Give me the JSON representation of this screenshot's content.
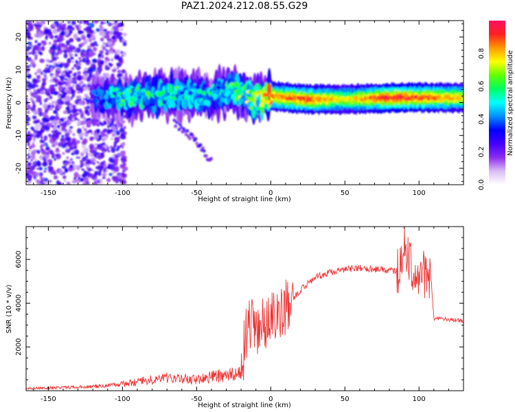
{
  "title": "PAZ1.2024.212.08.55.G29",
  "chart_data": [
    {
      "type": "heatmap",
      "xlabel": "Height of straight line (km)",
      "ylabel": "Frequency (Hz)",
      "xlim": [
        -165,
        130
      ],
      "ylim": [
        -25,
        25
      ],
      "x_ticks": [
        -150,
        -100,
        -50,
        0,
        50,
        100
      ],
      "y_ticks": [
        -20,
        -10,
        0,
        10,
        20
      ],
      "colorbar": {
        "label": "Normalized spectral amplitude",
        "range": [
          0,
          1
        ],
        "ticks": [
          0.0,
          0.2,
          0.4,
          0.6,
          0.8
        ],
        "colors": [
          "#ffffff",
          "#d9bdf5",
          "#8b2cf0",
          "#4400ff",
          "#0000ff",
          "#0090ff",
          "#00ffff",
          "#00ff60",
          "#60ff00",
          "#ffff00",
          "#ff9900",
          "#ff2020",
          "#ff1060"
        ]
      },
      "ridge": [
        {
          "x": -120,
          "f": 2.0,
          "amp": 0.35
        },
        {
          "x": -100,
          "f": 1.5,
          "amp": 0.55
        },
        {
          "x": -80,
          "f": 2.0,
          "amp": 0.55
        },
        {
          "x": -60,
          "f": 2.5,
          "amp": 0.55
        },
        {
          "x": -40,
          "f": 2.0,
          "amp": 0.5
        },
        {
          "x": -25,
          "f": 4.0,
          "amp": 0.6
        },
        {
          "x": -10,
          "f": 0.5,
          "amp": 0.7
        },
        {
          "x": 0,
          "f": 2.0,
          "amp": 0.85
        },
        {
          "x": 25,
          "f": 1.0,
          "amp": 0.9
        },
        {
          "x": 50,
          "f": 1.0,
          "amp": 0.75
        },
        {
          "x": 80,
          "f": 1.5,
          "amp": 0.95
        },
        {
          "x": 100,
          "f": 1.5,
          "amp": 0.9
        },
        {
          "x": 130,
          "f": 1.5,
          "amp": 0.8
        }
      ],
      "branch": [
        {
          "x": -65,
          "f": -6.0,
          "amp": 0.3
        },
        {
          "x": -50,
          "f": -12.0,
          "amp": 0.3
        },
        {
          "x": -40,
          "f": -18.0,
          "amp": 0.3
        }
      ]
    },
    {
      "type": "line",
      "xlabel": "Height of straight line (km)",
      "ylabel": "SNR (10 * v/v)",
      "xlim": [
        -165,
        130
      ],
      "ylim": [
        0,
        7500
      ],
      "x_ticks": [
        -150,
        -100,
        -50,
        0,
        50,
        100
      ],
      "y_ticks": [
        2000,
        4000,
        6000
      ],
      "line_color": "#ee3333",
      "series": [
        {
          "x": [
            -165,
            -150,
            -130,
            -110,
            -100,
            -90,
            -80,
            -70,
            -60,
            -50,
            -40,
            -30,
            -20,
            -17,
            -14,
            -10,
            -5,
            0,
            5,
            10,
            15,
            20,
            25,
            30,
            40,
            50,
            60,
            70,
            80,
            85,
            88,
            90,
            95,
            100,
            105,
            108,
            110,
            115,
            120,
            130
          ],
          "values": [
            100,
            130,
            160,
            220,
            300,
            400,
            500,
            600,
            550,
            500,
            650,
            700,
            800,
            2500,
            3000,
            2700,
            3000,
            3200,
            3500,
            3800,
            4200,
            4600,
            4900,
            5200,
            5400,
            5550,
            5600,
            5550,
            5500,
            5450,
            5600,
            6500,
            5600,
            5400,
            5300,
            5250,
            3300,
            3300,
            3250,
            3200
          ]
        }
      ]
    }
  ]
}
